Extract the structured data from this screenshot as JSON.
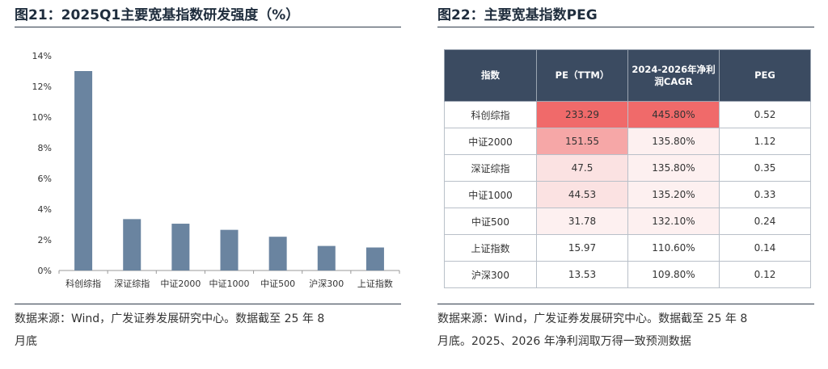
{
  "left_panel": {
    "title": "图21：2025Q1主要宽基指数研发强度（%）",
    "source_line1": "数据来源：Wind，广发证券发展研究中心。数据截至 25 年 8",
    "source_line2": "月底"
  },
  "right_panel": {
    "title": "图22：主要宽基指数PEG",
    "source_line1": "数据来源：Wind，广发证券发展研究中心。数据截至 25 年 8",
    "source_line2": "月底。2025、2026 年净利润取万得一致预测数据"
  },
  "colors": {
    "bar": "#6a84a0",
    "table_header_bg": "#3b4b61",
    "highlight_strong": "#f06a6a",
    "highlight_medium": "#f6a7a7",
    "highlight_light": "#fbe2e2",
    "highlight_faint": "#fdf0f0"
  },
  "chart_data": {
    "type": "bar",
    "title": "2025Q1主要宽基指数研发强度（%）",
    "categories": [
      "科创综指",
      "深证综指",
      "中证2000",
      "中证1000",
      "中证500",
      "沪深300",
      "上证指数"
    ],
    "values": [
      13.0,
      3.35,
      3.05,
      2.65,
      2.2,
      1.6,
      1.5
    ],
    "ylim": [
      0,
      14
    ],
    "yticks": [
      0,
      2,
      4,
      6,
      8,
      10,
      12,
      14
    ],
    "ytick_labels": [
      "0%",
      "2%",
      "4%",
      "6%",
      "8%",
      "10%",
      "12%",
      "14%"
    ],
    "grid": false,
    "legend": "none"
  },
  "table": {
    "headers": [
      "指数",
      "PE（TTM）",
      "2024-2026年净利润CAGR",
      "PEG"
    ],
    "rows": [
      {
        "index": "科创综指",
        "pe": "233.29",
        "cagr": "445.80%",
        "peg": "0.52",
        "pe_shade": "strong",
        "cagr_shade": "strong"
      },
      {
        "index": "中证2000",
        "pe": "151.55",
        "cagr": "135.80%",
        "peg": "1.12",
        "pe_shade": "medium",
        "cagr_shade": "faint"
      },
      {
        "index": "深证综指",
        "pe": "47.5",
        "cagr": "135.80%",
        "peg": "0.35",
        "pe_shade": "light",
        "cagr_shade": "faint"
      },
      {
        "index": "中证1000",
        "pe": "44.53",
        "cagr": "135.20%",
        "peg": "0.33",
        "pe_shade": "light",
        "cagr_shade": "faint"
      },
      {
        "index": "中证500",
        "pe": "31.78",
        "cagr": "132.10%",
        "peg": "0.24",
        "pe_shade": "faint",
        "cagr_shade": "faint"
      },
      {
        "index": "上证指数",
        "pe": "15.97",
        "cagr": "110.60%",
        "peg": "0.14",
        "pe_shade": "none",
        "cagr_shade": "none"
      },
      {
        "index": "沪深300",
        "pe": "13.53",
        "cagr": "109.80%",
        "peg": "0.12",
        "pe_shade": "none",
        "cagr_shade": "none"
      }
    ]
  }
}
